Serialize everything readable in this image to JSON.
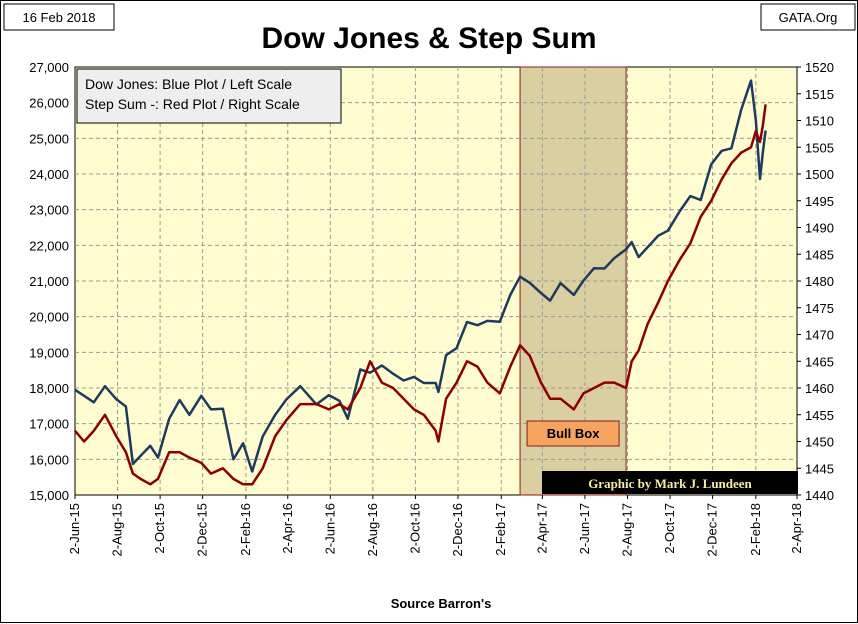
{
  "header": {
    "date": "16 Feb 2018",
    "source_site": "GATA.Org",
    "title": "Dow Jones & Step Sum"
  },
  "legend": {
    "line1": "Dow Jones: Blue Plot / Left Scale",
    "line2": "Step Sum -: Red Plot / Right Scale"
  },
  "annotations": {
    "bull_box": "Bull Box",
    "credit": "Graphic by Mark J. Lundeen"
  },
  "colors": {
    "plot_bg": "#fffdd0",
    "grid": "#9a9a9a",
    "dow": "#1f3a5f",
    "step": "#8b0000",
    "bull_box_fill": "#d9cfa0",
    "bull_box_border": "#8b1a1a",
    "bull_label_fill": "#f4a460"
  },
  "chart_data": {
    "type": "line",
    "title": "Dow Jones & Step Sum",
    "xlabel": "Source Barron's",
    "x_ticks": [
      "2-Jun-15",
      "2-Aug-15",
      "2-Oct-15",
      "2-Dec-15",
      "2-Feb-16",
      "2-Apr-16",
      "2-Jun-16",
      "2-Aug-16",
      "2-Oct-16",
      "2-Dec-16",
      "2-Feb-17",
      "2-Apr-17",
      "2-Jun-17",
      "2-Aug-17",
      "2-Oct-17",
      "2-Dec-17",
      "2-Feb-18",
      "2-Apr-18"
    ],
    "xlim": [
      "2015-06-02",
      "2018-04-02"
    ],
    "y_left": {
      "label": "",
      "lim": [
        15000,
        27000
      ],
      "ticks": [
        "15,000",
        "16,000",
        "17,000",
        "18,000",
        "19,000",
        "20,000",
        "21,000",
        "22,000",
        "23,000",
        "24,000",
        "25,000",
        "26,000",
        "27,000"
      ]
    },
    "y_right": {
      "label": "",
      "lim": [
        1440,
        1520
      ],
      "ticks": [
        "1440",
        "1445",
        "1450",
        "1455",
        "1460",
        "1465",
        "1470",
        "1475",
        "1480",
        "1485",
        "1490",
        "1495",
        "1500",
        "1505",
        "1510",
        "1515",
        "1520"
      ]
    },
    "grid": true,
    "legend_position": "top-left",
    "shaded_region": {
      "label": "Bull Box",
      "start": "2017-03-01",
      "end": "2017-07-31"
    },
    "series": [
      {
        "name": "Dow Jones",
        "axis": "left",
        "points": [
          [
            "2015-06-02",
            17950
          ],
          [
            "2015-06-15",
            17780
          ],
          [
            "2015-06-29",
            17600
          ],
          [
            "2015-07-15",
            18050
          ],
          [
            "2015-07-31",
            17690
          ],
          [
            "2015-08-14",
            17480
          ],
          [
            "2015-08-24",
            15870
          ],
          [
            "2015-09-04",
            16100
          ],
          [
            "2015-09-18",
            16380
          ],
          [
            "2015-09-29",
            16050
          ],
          [
            "2015-10-15",
            17140
          ],
          [
            "2015-10-30",
            17660
          ],
          [
            "2015-11-13",
            17250
          ],
          [
            "2015-11-30",
            17780
          ],
          [
            "2015-12-14",
            17400
          ],
          [
            "2015-12-31",
            17420
          ],
          [
            "2016-01-15",
            16000
          ],
          [
            "2016-01-29",
            16450
          ],
          [
            "2016-02-11",
            15660
          ],
          [
            "2016-02-26",
            16640
          ],
          [
            "2016-03-15",
            17250
          ],
          [
            "2016-03-31",
            17680
          ],
          [
            "2016-04-20",
            18050
          ],
          [
            "2016-05-13",
            17540
          ],
          [
            "2016-05-31",
            17800
          ],
          [
            "2016-06-15",
            17640
          ],
          [
            "2016-06-27",
            17140
          ],
          [
            "2016-07-15",
            18520
          ],
          [
            "2016-07-29",
            18430
          ],
          [
            "2016-08-15",
            18630
          ],
          [
            "2016-08-31",
            18400
          ],
          [
            "2016-09-15",
            18210
          ],
          [
            "2016-09-30",
            18310
          ],
          [
            "2016-10-14",
            18140
          ],
          [
            "2016-10-31",
            18140
          ],
          [
            "2016-11-04",
            17890
          ],
          [
            "2016-11-15",
            18920
          ],
          [
            "2016-11-30",
            19120
          ],
          [
            "2016-12-15",
            19850
          ],
          [
            "2016-12-30",
            19760
          ],
          [
            "2017-01-13",
            19880
          ],
          [
            "2017-01-31",
            19860
          ],
          [
            "2017-02-15",
            20610
          ],
          [
            "2017-03-01",
            21120
          ],
          [
            "2017-03-15",
            20950
          ],
          [
            "2017-03-31",
            20660
          ],
          [
            "2017-04-13",
            20450
          ],
          [
            "2017-04-28",
            20940
          ],
          [
            "2017-05-17",
            20610
          ],
          [
            "2017-05-31",
            21010
          ],
          [
            "2017-06-15",
            21360
          ],
          [
            "2017-06-30",
            21350
          ],
          [
            "2017-07-14",
            21640
          ],
          [
            "2017-07-31",
            21890
          ],
          [
            "2017-08-08",
            22090
          ],
          [
            "2017-08-18",
            21670
          ],
          [
            "2017-08-31",
            21950
          ],
          [
            "2017-09-15",
            22270
          ],
          [
            "2017-09-29",
            22410
          ],
          [
            "2017-10-16",
            22960
          ],
          [
            "2017-10-31",
            23380
          ],
          [
            "2017-11-15",
            23270
          ],
          [
            "2017-11-30",
            24270
          ],
          [
            "2017-12-15",
            24650
          ],
          [
            "2017-12-29",
            24720
          ],
          [
            "2018-01-12",
            25800
          ],
          [
            "2018-01-26",
            26620
          ],
          [
            "2018-02-02",
            25520
          ],
          [
            "2018-02-08",
            23860
          ],
          [
            "2018-02-12",
            24600
          ],
          [
            "2018-02-16",
            25220
          ]
        ]
      },
      {
        "name": "Step Sum",
        "axis": "right",
        "points": [
          [
            "2015-06-02",
            1452
          ],
          [
            "2015-06-15",
            1450
          ],
          [
            "2015-06-29",
            1452
          ],
          [
            "2015-07-15",
            1455
          ],
          [
            "2015-07-31",
            1451
          ],
          [
            "2015-08-14",
            1448
          ],
          [
            "2015-08-24",
            1444
          ],
          [
            "2015-09-04",
            1443
          ],
          [
            "2015-09-18",
            1442
          ],
          [
            "2015-09-29",
            1443
          ],
          [
            "2015-10-15",
            1448
          ],
          [
            "2015-10-30",
            1448
          ],
          [
            "2015-11-13",
            1447
          ],
          [
            "2015-11-30",
            1446
          ],
          [
            "2015-12-14",
            1444
          ],
          [
            "2015-12-31",
            1445
          ],
          [
            "2016-01-15",
            1443
          ],
          [
            "2016-01-29",
            1442
          ],
          [
            "2016-02-11",
            1442
          ],
          [
            "2016-02-26",
            1445
          ],
          [
            "2016-03-15",
            1451
          ],
          [
            "2016-03-31",
            1454
          ],
          [
            "2016-04-20",
            1457
          ],
          [
            "2016-05-13",
            1457
          ],
          [
            "2016-05-31",
            1456
          ],
          [
            "2016-06-15",
            1457
          ],
          [
            "2016-06-27",
            1456
          ],
          [
            "2016-07-15",
            1460
          ],
          [
            "2016-07-29",
            1465
          ],
          [
            "2016-08-15",
            1461
          ],
          [
            "2016-08-31",
            1460
          ],
          [
            "2016-09-15",
            1458
          ],
          [
            "2016-09-30",
            1456
          ],
          [
            "2016-10-14",
            1455
          ],
          [
            "2016-10-31",
            1452
          ],
          [
            "2016-11-04",
            1450
          ],
          [
            "2016-11-15",
            1458
          ],
          [
            "2016-11-30",
            1461
          ],
          [
            "2016-12-15",
            1465
          ],
          [
            "2016-12-30",
            1464
          ],
          [
            "2017-01-13",
            1461
          ],
          [
            "2017-01-31",
            1459
          ],
          [
            "2017-02-15",
            1464
          ],
          [
            "2017-03-01",
            1468
          ],
          [
            "2017-03-15",
            1466
          ],
          [
            "2017-03-31",
            1461
          ],
          [
            "2017-04-13",
            1458
          ],
          [
            "2017-04-28",
            1458
          ],
          [
            "2017-05-17",
            1456
          ],
          [
            "2017-05-31",
            1459
          ],
          [
            "2017-06-15",
            1460
          ],
          [
            "2017-06-30",
            1461
          ],
          [
            "2017-07-14",
            1461
          ],
          [
            "2017-07-31",
            1460
          ],
          [
            "2017-08-08",
            1465
          ],
          [
            "2017-08-18",
            1467
          ],
          [
            "2017-08-31",
            1472
          ],
          [
            "2017-09-15",
            1476
          ],
          [
            "2017-09-29",
            1480
          ],
          [
            "2017-10-16",
            1484
          ],
          [
            "2017-10-31",
            1487
          ],
          [
            "2017-11-15",
            1492
          ],
          [
            "2017-11-30",
            1495
          ],
          [
            "2017-12-15",
            1499
          ],
          [
            "2017-12-29",
            1502
          ],
          [
            "2018-01-12",
            1504
          ],
          [
            "2018-01-26",
            1505
          ],
          [
            "2018-02-02",
            1508
          ],
          [
            "2018-02-08",
            1506
          ],
          [
            "2018-02-12",
            1509
          ],
          [
            "2018-02-16",
            1513
          ]
        ]
      }
    ]
  }
}
